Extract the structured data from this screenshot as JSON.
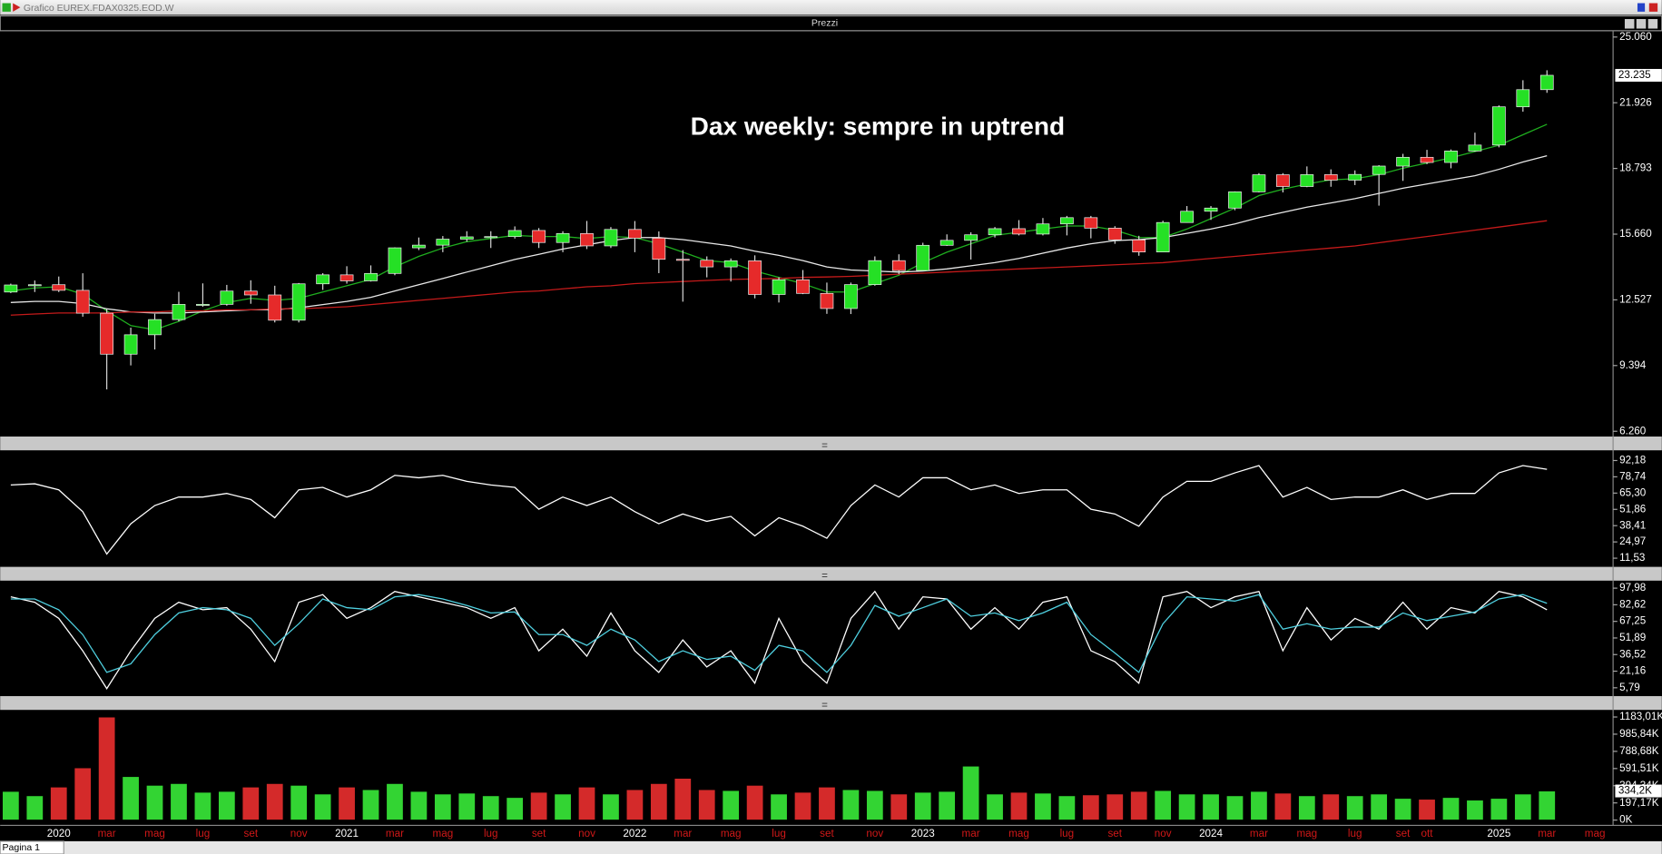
{
  "window": {
    "title": "Grafico EUREX.FDAX0325.EOD.W",
    "tab": "Pagina 1"
  },
  "chart_data": [
    {
      "type": "candlestick",
      "title": "Prezzi",
      "annotation": "Dax weekly: sempre in uptrend",
      "open": [
        12900,
        13236,
        13249,
        12981,
        11890,
        9936,
        10862,
        11587,
        12311,
        12313,
        12945,
        12761,
        11556,
        13291,
        13719,
        13433,
        13786,
        15008,
        15136,
        15421,
        15531,
        15544,
        15835,
        15261,
        15689,
        15100,
        15885,
        15471,
        14461,
        14415,
        14098,
        14388,
        12784,
        13484,
        12834,
        12114,
        13253,
        14397,
        13924,
        15128,
        15365,
        15629,
        15922,
        15664,
        16148,
        16447,
        15947,
        15387,
        14810,
        16215,
        16752,
        16904,
        17678,
        18492,
        17932,
        18498,
        18235,
        18508,
        18906,
        19325,
        19078,
        19626,
        19909,
        21732,
        22551,
        null,
        null
      ],
      "high": [
        13300,
        13450,
        13640,
        13795,
        12100,
        11200,
        11860,
        12910,
        13313,
        13240,
        13460,
        13200,
        13330,
        13800,
        14130,
        14170,
        15030,
        15500,
        15570,
        15800,
        15800,
        16030,
        15950,
        15800,
        16290,
        16000,
        16285,
        15790,
        14900,
        14600,
        14500,
        14650,
        13600,
        13950,
        13350,
        13350,
        14600,
        14700,
        15250,
        15650,
        15750,
        16000,
        16330,
        16430,
        16530,
        16530,
        16040,
        15580,
        16300,
        17000,
        17000,
        17700,
        18570,
        18570,
        18890,
        18750,
        18700,
        18950,
        19490,
        19680,
        19700,
        20500,
        21800,
        23000,
        23475,
        null,
        null
      ],
      "low": [
        12850,
        12900,
        12900,
        11724,
        8256,
        9400,
        10160,
        11500,
        12200,
        12250,
        12340,
        11450,
        11450,
        13000,
        13300,
        13400,
        13700,
        14900,
        14800,
        15300,
        15000,
        15450,
        15000,
        14800,
        14950,
        15000,
        14800,
        13800,
        12440,
        13600,
        13400,
        12600,
        12400,
        12800,
        11860,
        11850,
        13200,
        13750,
        13900,
        15100,
        14450,
        15500,
        15600,
        15600,
        15600,
        15460,
        15200,
        14630,
        14800,
        16200,
        16340,
        16800,
        17650,
        17650,
        17900,
        17920,
        18000,
        17020,
        18200,
        19000,
        18800,
        19600,
        19800,
        21500,
        22400,
        null,
        null
      ],
      "close": [
        13236,
        13249,
        12981,
        11890,
        9936,
        10862,
        11587,
        12311,
        12313,
        12945,
        12761,
        11556,
        13291,
        13719,
        13433,
        13786,
        15008,
        15136,
        15421,
        15531,
        15544,
        15835,
        15261,
        15689,
        15100,
        15885,
        15471,
        14461,
        14415,
        14098,
        14388,
        12784,
        13484,
        12834,
        12114,
        13253,
        14397,
        13924,
        15128,
        15365,
        15629,
        15922,
        15664,
        16148,
        16447,
        15947,
        15387,
        14810,
        16215,
        16752,
        16904,
        17678,
        18492,
        17932,
        18498,
        18235,
        18508,
        18906,
        19325,
        19078,
        19626,
        19909,
        21732,
        22551,
        23235,
        null,
        null
      ],
      "up_color": "#25e025",
      "down_color": "#e62a2a",
      "lines": [
        {
          "color": "#1fae1f",
          "values": [
            12950,
            13100,
            13150,
            12800,
            12000,
            11300,
            11100,
            11500,
            12000,
            12400,
            12600,
            12500,
            12600,
            12900,
            13200,
            13500,
            14100,
            14600,
            15000,
            15300,
            15450,
            15600,
            15550,
            15550,
            15450,
            15550,
            15500,
            15200,
            14800,
            14400,
            14300,
            13900,
            13600,
            13300,
            12900,
            12900,
            13300,
            13700,
            14300,
            14800,
            15200,
            15600,
            15750,
            15900,
            16050,
            16050,
            15850,
            15500,
            15500,
            15900,
            16400,
            16900,
            17500,
            17800,
            18050,
            18250,
            18300,
            18500,
            18800,
            19050,
            19300,
            19600,
            19900,
            20400,
            20900,
            null,
            null
          ]
        },
        {
          "color": "#e8e8e8",
          "values": [
            12400,
            12450,
            12450,
            12350,
            12100,
            11950,
            11900,
            11900,
            11950,
            12000,
            12050,
            12050,
            12150,
            12300,
            12450,
            12650,
            12950,
            13250,
            13550,
            13850,
            14150,
            14450,
            14700,
            14950,
            15150,
            15350,
            15500,
            15500,
            15400,
            15250,
            15100,
            14850,
            14650,
            14400,
            14100,
            13950,
            13900,
            13850,
            13900,
            14000,
            14150,
            14300,
            14500,
            14750,
            15000,
            15200,
            15350,
            15400,
            15500,
            15700,
            15900,
            16150,
            16450,
            16700,
            16950,
            17150,
            17350,
            17600,
            17850,
            18050,
            18250,
            18450,
            18750,
            19100,
            19400,
            null,
            null
          ]
        },
        {
          "color": "#c41a1a",
          "values": [
            11800,
            11850,
            11900,
            11900,
            11900,
            11950,
            11950,
            12000,
            12000,
            12050,
            12050,
            12100,
            12100,
            12150,
            12200,
            12300,
            12400,
            12500,
            12600,
            12700,
            12800,
            12900,
            12950,
            13050,
            13150,
            13200,
            13300,
            13350,
            13400,
            13450,
            13500,
            13520,
            13550,
            13600,
            13620,
            13650,
            13700,
            13750,
            13800,
            13850,
            13900,
            13950,
            14000,
            14050,
            14100,
            14150,
            14200,
            14250,
            14300,
            14400,
            14500,
            14600,
            14700,
            14800,
            14900,
            15000,
            15100,
            15250,
            15400,
            15550,
            15700,
            15850,
            16000,
            16150,
            16300,
            null,
            null
          ]
        }
      ],
      "ylim": [
        6110,
        25310
      ],
      "yticks": [
        {
          "value": 25060,
          "label": "25.060"
        },
        {
          "value": 21926,
          "label": "21.926"
        },
        {
          "value": 18793,
          "label": "18.793"
        },
        {
          "value": 15660,
          "label": "15.660"
        },
        {
          "value": 12527,
          "label": "12.527"
        },
        {
          "value": 9394,
          "label": "9.394"
        },
        {
          "value": 6260,
          "label": "6.260"
        }
      ],
      "last_value": {
        "value": 23235,
        "label": "23.235"
      }
    },
    {
      "type": "line",
      "series": [
        {
          "color": "#ffffff",
          "values": [
            72,
            73,
            68,
            50,
            15,
            40,
            55,
            62,
            62,
            65,
            60,
            45,
            68,
            70,
            62,
            68,
            80,
            78,
            80,
            75,
            72,
            70,
            52,
            62,
            55,
            62,
            50,
            40,
            48,
            42,
            46,
            30,
            45,
            38,
            28,
            55,
            72,
            62,
            78,
            78,
            68,
            72,
            65,
            68,
            68,
            52,
            48,
            38,
            62,
            75,
            75,
            82,
            88,
            62,
            70,
            60,
            62,
            62,
            68,
            60,
            65,
            65,
            82,
            88,
            85,
            null,
            null
          ]
        }
      ],
      "ylim": [
        7,
        98
      ],
      "yticks": [
        {
          "value": 92.18,
          "label": "92,18"
        },
        {
          "value": 78.74,
          "label": "78,74"
        },
        {
          "value": 65.3,
          "label": "65,30"
        },
        {
          "value": 51.86,
          "label": "51,86"
        },
        {
          "value": 38.41,
          "label": "38,41"
        },
        {
          "value": 24.97,
          "label": "24,97"
        },
        {
          "value": 11.53,
          "label": "11,53"
        }
      ]
    },
    {
      "type": "line",
      "series": [
        {
          "color": "#ffffff",
          "values": [
            90,
            85,
            70,
            40,
            5,
            40,
            70,
            85,
            78,
            80,
            60,
            30,
            85,
            92,
            70,
            80,
            95,
            90,
            85,
            80,
            70,
            80,
            40,
            60,
            35,
            75,
            40,
            20,
            50,
            25,
            40,
            10,
            70,
            30,
            10,
            70,
            95,
            60,
            90,
            88,
            60,
            80,
            60,
            85,
            90,
            40,
            30,
            10,
            90,
            95,
            80,
            90,
            95,
            40,
            80,
            50,
            70,
            60,
            85,
            60,
            80,
            75,
            95,
            90,
            78,
            null,
            null
          ]
        },
        {
          "color": "#4fd0e0",
          "values": [
            88,
            88,
            78,
            55,
            20,
            28,
            55,
            75,
            80,
            78,
            70,
            45,
            65,
            88,
            80,
            78,
            90,
            92,
            88,
            82,
            75,
            76,
            55,
            55,
            45,
            60,
            50,
            30,
            40,
            32,
            35,
            22,
            45,
            40,
            20,
            45,
            82,
            72,
            80,
            88,
            72,
            75,
            68,
            75,
            85,
            55,
            38,
            20,
            65,
            90,
            88,
            86,
            92,
            60,
            65,
            60,
            62,
            62,
            75,
            68,
            72,
            76,
            88,
            92,
            84,
            null,
            null
          ]
        }
      ],
      "ylim": [
        1,
        103
      ],
      "yticks": [
        {
          "value": 97.98,
          "label": "97,98"
        },
        {
          "value": 82.62,
          "label": "82,62"
        },
        {
          "value": 67.25,
          "label": "67,25"
        },
        {
          "value": 51.89,
          "label": "51,89"
        },
        {
          "value": 36.52,
          "label": "36,52"
        },
        {
          "value": 21.16,
          "label": "21,16"
        },
        {
          "value": 5.79,
          "label": "5,79"
        }
      ]
    },
    {
      "type": "bar",
      "categories": [
        null,
        null,
        "2020",
        null,
        "mar",
        null,
        "mag",
        null,
        "lug",
        null,
        "set",
        null,
        "nov",
        null,
        "2021",
        null,
        "mar",
        null,
        "mag",
        null,
        "lug",
        null,
        "set",
        null,
        "nov",
        null,
        "2022",
        null,
        "mar",
        null,
        "mag",
        null,
        "lug",
        null,
        "set",
        null,
        "nov",
        null,
        "2023",
        null,
        "mar",
        null,
        "mag",
        null,
        "lug",
        null,
        "set",
        null,
        "nov",
        null,
        "2024",
        null,
        "mar",
        null,
        "mag",
        null,
        "lug",
        null,
        "set",
        "ott",
        null,
        null,
        "2025",
        null,
        "mar",
        null,
        "mag"
      ],
      "values": [
        330,
        280,
        380,
        600,
        1183,
        500,
        400,
        420,
        320,
        330,
        380,
        420,
        400,
        300,
        380,
        350,
        420,
        330,
        300,
        310,
        280,
        260,
        320,
        300,
        380,
        300,
        350,
        420,
        480,
        350,
        340,
        400,
        300,
        320,
        380,
        350,
        340,
        300,
        320,
        330,
        620,
        300,
        320,
        310,
        280,
        290,
        300,
        330,
        340,
        300,
        300,
        280,
        330,
        310,
        280,
        300,
        280,
        300,
        250,
        240,
        260,
        230,
        250,
        300,
        334.2,
        null,
        null
      ],
      "up_color": "#33d433",
      "down_color": "#d42a2a",
      "ylim": [
        0,
        1240
      ],
      "yticks": [
        {
          "value": 1183.01,
          "label": "1183,01K"
        },
        {
          "value": 985.84,
          "label": "985,84K"
        },
        {
          "value": 788.68,
          "label": "788,68K"
        },
        {
          "value": 591.51,
          "label": "591,51K"
        },
        {
          "value": 394.34,
          "label": "394,34K"
        },
        {
          "value": 197.17,
          "label": "197,17K"
        },
        {
          "value": 0,
          "label": "0K"
        }
      ],
      "last_value": {
        "value": 334.2,
        "label": "334,2K"
      }
    }
  ]
}
